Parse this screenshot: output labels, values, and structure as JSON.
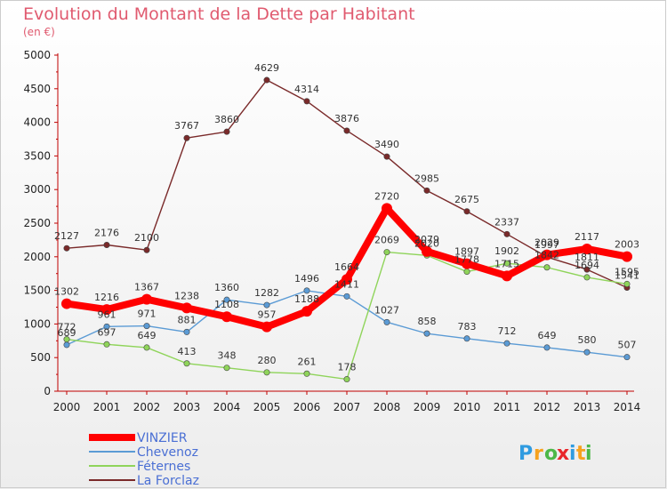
{
  "chart_data": {
    "type": "line",
    "title": "Evolution du Montant de la Dette par Habitant",
    "subtitle": "(en €)",
    "xlabel": "",
    "ylabel": "",
    "x": [
      "2000",
      "2001",
      "2002",
      "2003",
      "2004",
      "2005",
      "2006",
      "2007",
      "2008",
      "2009",
      "2010",
      "2011",
      "2012",
      "2013",
      "2014"
    ],
    "ylim": [
      0,
      5000
    ],
    "yticks": [
      "0",
      "500",
      "1000",
      "1500",
      "2000",
      "2500",
      "3000",
      "3500",
      "4000",
      "4500",
      "5000"
    ],
    "grid": false,
    "legend_position": "bottom-left",
    "series": [
      {
        "name": "VINZIER",
        "color": "#ff0000",
        "values": [
          1302,
          1216,
          1367,
          1238,
          1108,
          957,
          1188,
          1664,
          2720,
          2079,
          1897,
          1715,
          2029,
          2117,
          2003
        ]
      },
      {
        "name": "Chevenoz",
        "color": "#5b9bd5",
        "values": [
          689,
          961,
          971,
          881,
          1360,
          1282,
          1496,
          1411,
          1027,
          858,
          783,
          712,
          649,
          580,
          507
        ]
      },
      {
        "name": "Féternes",
        "color": "#8fd45a",
        "values": [
          772,
          697,
          649,
          413,
          348,
          280,
          261,
          178,
          2069,
          2020,
          1778,
          1902,
          1842,
          1694,
          1595
        ]
      },
      {
        "name": "La Forclaz",
        "color": "#7a2a2a",
        "values": [
          2127,
          2176,
          2100,
          3767,
          3860,
          4629,
          4314,
          3876,
          3490,
          2985,
          2675,
          2337,
          1997,
          1811,
          1541
        ]
      }
    ]
  },
  "logo": {
    "text": "Proxiti",
    "letters": [
      "P",
      "r",
      "o",
      "x",
      "i",
      "t",
      "i"
    ],
    "colors": [
      "#2f9be0",
      "#f6a21e",
      "#4db848",
      "#e8262a",
      "#2f9be0",
      "#f6a21e",
      "#4db848"
    ]
  }
}
